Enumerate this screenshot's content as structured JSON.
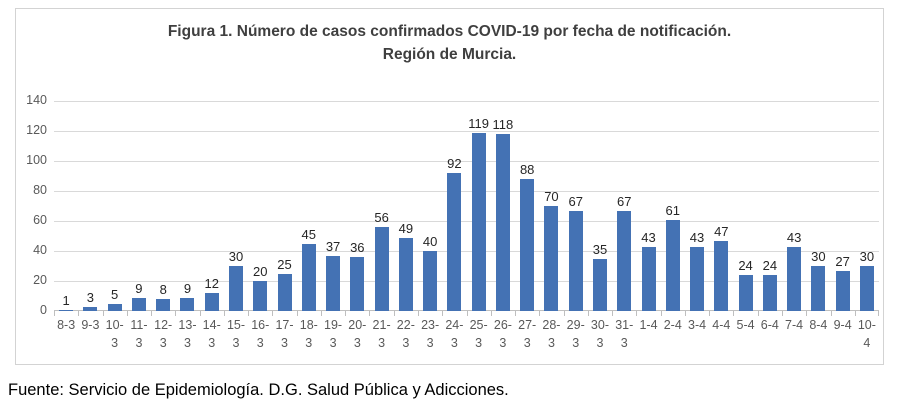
{
  "chart_data": {
    "type": "bar",
    "title": "Figura 1. Número de casos confirmados COVID-19 por fecha de notificación.",
    "subtitle": "Región de Murcia.",
    "categories": [
      "8-3",
      "9-3",
      "10-3",
      "11-3",
      "12-3",
      "13-3",
      "14-3",
      "15-3",
      "16-3",
      "17-3",
      "18-3",
      "19-3",
      "20-3",
      "21-3",
      "22-3",
      "23-3",
      "24-3",
      "25-3",
      "26-3",
      "27-3",
      "28-3",
      "29-3",
      "30-3",
      "31-3",
      "1-4",
      "2-4",
      "3-4",
      "4-4",
      "5-4",
      "6-4",
      "7-4",
      "8-4",
      "9-4",
      "10-4"
    ],
    "values": [
      1,
      3,
      5,
      9,
      8,
      9,
      12,
      30,
      20,
      25,
      45,
      37,
      36,
      56,
      49,
      40,
      92,
      119,
      118,
      88,
      70,
      67,
      35,
      67,
      43,
      61,
      43,
      47,
      24,
      24,
      43,
      30,
      27,
      30
    ],
    "xlabel": "",
    "ylabel": "",
    "ylim": [
      0,
      140
    ],
    "ytick_step": 20,
    "yticks": [
      0,
      20,
      40,
      60,
      80,
      100,
      120,
      140
    ],
    "grid": true,
    "legend": false,
    "data_labels": true,
    "bar_color": "#4472b4",
    "gridline_color": "#d9d9d9",
    "axis_color": "#bfbfbf",
    "axis_label_color": "#595959",
    "title_color": "#3f3f3f"
  },
  "source": "Fuente: Servicio de Epidemiología. D.G. Salud Pública y Adicciones."
}
